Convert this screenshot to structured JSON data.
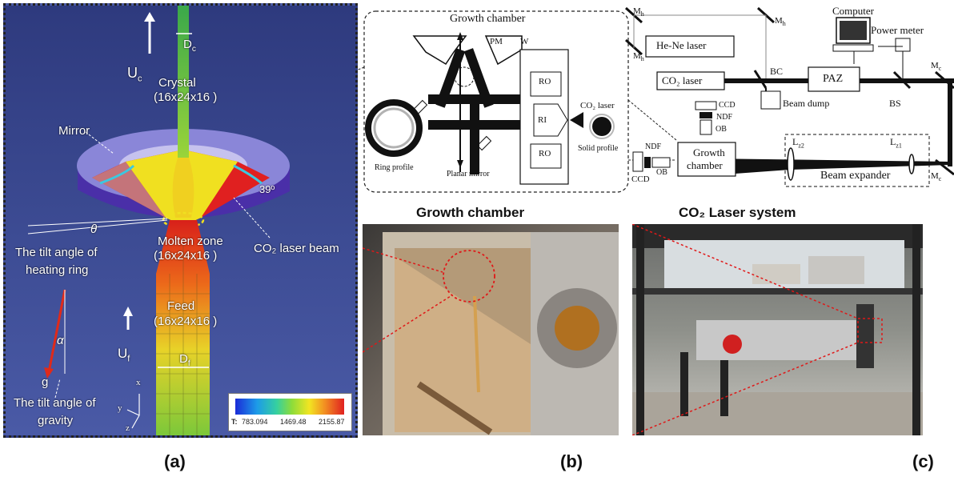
{
  "panel_a": {
    "Dc": "D",
    "Dc_sub": "c",
    "Uc": "U",
    "Uc_sub": "c",
    "crystal": "Crystal",
    "crystal_grid": "(16x24x16 )",
    "mirror": "Mirror",
    "angle": "39º",
    "theta": "θ",
    "molten": "Molten zone",
    "molten_grid": "(16x24x16 )",
    "co2_beam": "CO₂ laser beam",
    "tilt_ring_1": "The tilt angle of",
    "tilt_ring_2": "heating ring",
    "alpha": "α",
    "feed": "Feed",
    "feed_grid": "(16x24x16 )",
    "Uf": "U",
    "Uf_sub": "f",
    "Df": "D",
    "Df_sub": "f",
    "g": "g",
    "tilt_gravity_1": "The tilt angle of",
    "tilt_gravity_2": "gravity",
    "axis_x": "x",
    "axis_y": "y",
    "axis_z": "z",
    "colorbar_T": "T:",
    "colorbar_ticks": [
      "783.094",
      "1469.48",
      "2155.87"
    ]
  },
  "panel_b_schematic": {
    "title": "Growth chamber",
    "pm": "PM",
    "w": "W",
    "ro_top": "RO",
    "ri": "RI",
    "ro_bottom": "RO",
    "co2_laser": "CO₂ laser",
    "solid_profile": "Solid profile",
    "ring_profile": "Ring profile",
    "planar_mirror": "Planar mirror"
  },
  "panel_c_schematic": {
    "mh1": "M",
    "mh2": "M",
    "mh3": "M",
    "mh_sub": "h",
    "hene": "He-Ne laser",
    "computer": "Computer",
    "power_meter": "Power meter",
    "co2_laser": "CO₂ laser",
    "bc": "BC",
    "paz": "PAZ",
    "mc1": "M",
    "mc2": "M",
    "mc_sub": "c",
    "beam_dump": "Beam dump",
    "bs": "BS",
    "ccd_top": "CCD",
    "ndf_top": "NDF",
    "ob_top": "OB",
    "ndf_left": "NDF",
    "ccd_left": "CCD",
    "ob_left": "OB",
    "growth_chamber_1": "Growth",
    "growth_chamber_2": "chamber",
    "lz2": "L",
    "lz2_sub": "z2",
    "lz1": "L",
    "lz1_sub": "z1",
    "beam_expander": "Beam expander"
  },
  "photos": {
    "growth_chamber_title": "Growth chamber",
    "co2_system_title": "CO₂ Laser system"
  },
  "captions": {
    "a": "(a)",
    "b": "(b)",
    "c": "(c)"
  },
  "colors": {
    "background_a": "#3d4c94",
    "red_highlight": "#e01818"
  }
}
